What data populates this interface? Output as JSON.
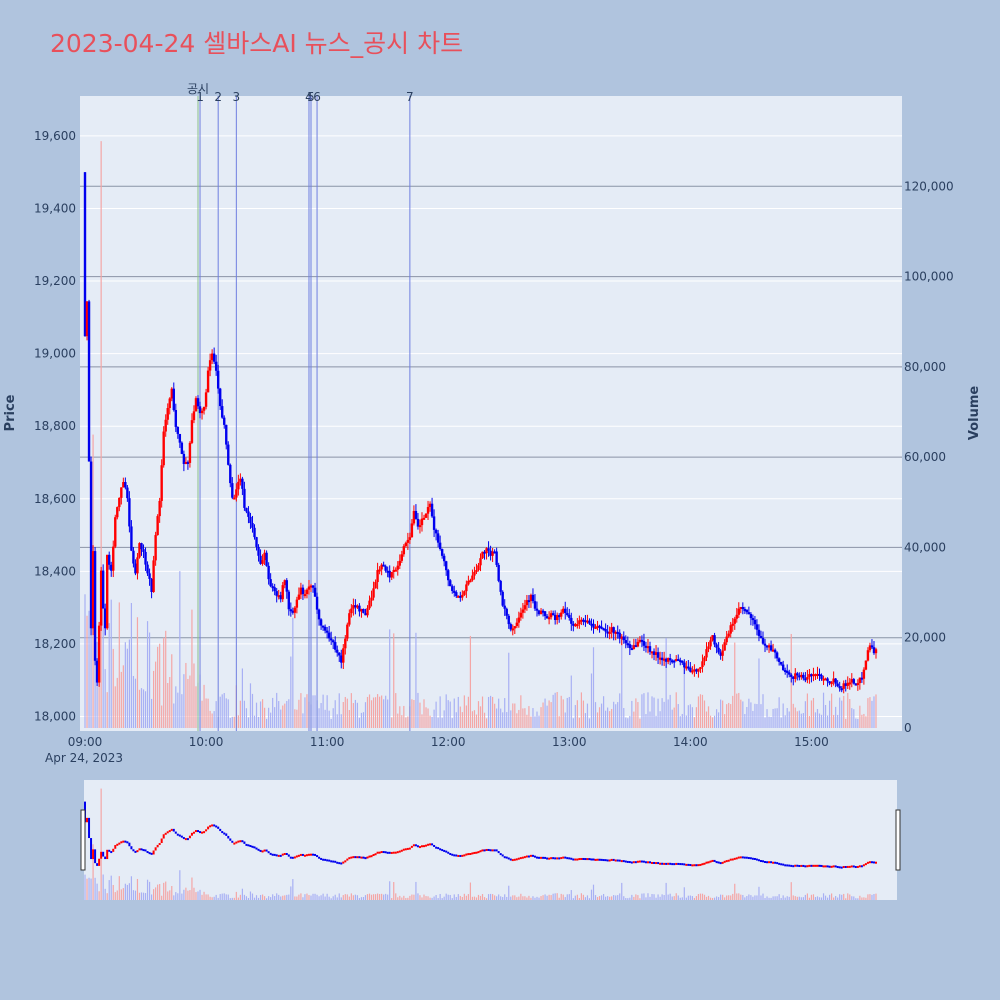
{
  "title": "2023-04-24 셀바스AI 뉴스_공시 차트",
  "colors": {
    "up": "#ff0000",
    "down": "#0000ee",
    "up_vol": "#f4a6a6",
    "down_vol": "#a8b0f4",
    "event": "#6f7fe0",
    "gongsi": "#8ac08a"
  },
  "chart_data": {
    "type": "candlestick",
    "title": "2023-04-24 셀바스AI 뉴스_공시 차트",
    "x_date_label": "Apr 24, 2023",
    "x_ticks": [
      "09:00",
      "10:00",
      "11:00",
      "12:00",
      "13:00",
      "14:00",
      "15:00"
    ],
    "y_label": "Price",
    "y2_label": "Volume",
    "y_ticks": [
      "18,000",
      "18,200",
      "18,400",
      "18,600",
      "18,800",
      "19,000",
      "19,200",
      "19,400",
      "19,600"
    ],
    "y2_ticks": [
      "0",
      "20,000",
      "40,000",
      "60,000",
      "80,000",
      "100,000",
      "120,000"
    ],
    "ylim": [
      17960,
      19710
    ],
    "y2lim": [
      0,
      140000
    ],
    "xlim_min": [
      0,
      392
    ],
    "price_path_min": [
      [
        0,
        19500
      ],
      [
        1,
        19050
      ],
      [
        2,
        19150
      ],
      [
        3,
        18700
      ],
      [
        4,
        18250
      ],
      [
        5,
        18450
      ],
      [
        6,
        18150
      ],
      [
        7,
        18100
      ],
      [
        8,
        18250
      ],
      [
        9,
        18400
      ],
      [
        10,
        18300
      ],
      [
        11,
        18250
      ],
      [
        12,
        18450
      ],
      [
        14,
        18400
      ],
      [
        16,
        18550
      ],
      [
        18,
        18600
      ],
      [
        20,
        18650
      ],
      [
        22,
        18600
      ],
      [
        24,
        18450
      ],
      [
        26,
        18400
      ],
      [
        28,
        18480
      ],
      [
        30,
        18450
      ],
      [
        32,
        18400
      ],
      [
        34,
        18350
      ],
      [
        36,
        18500
      ],
      [
        38,
        18600
      ],
      [
        40,
        18780
      ],
      [
        42,
        18850
      ],
      [
        44,
        18900
      ],
      [
        46,
        18800
      ],
      [
        48,
        18750
      ],
      [
        50,
        18700
      ],
      [
        52,
        18700
      ],
      [
        54,
        18820
      ],
      [
        56,
        18870
      ],
      [
        58,
        18830
      ],
      [
        60,
        18850
      ],
      [
        62,
        18950
      ],
      [
        64,
        19000
      ],
      [
        66,
        18950
      ],
      [
        68,
        18850
      ],
      [
        70,
        18800
      ],
      [
        72,
        18700
      ],
      [
        74,
        18600
      ],
      [
        76,
        18620
      ],
      [
        78,
        18660
      ],
      [
        80,
        18580
      ],
      [
        82,
        18550
      ],
      [
        84,
        18520
      ],
      [
        86,
        18470
      ],
      [
        88,
        18420
      ],
      [
        90,
        18450
      ],
      [
        92,
        18380
      ],
      [
        94,
        18350
      ],
      [
        96,
        18340
      ],
      [
        98,
        18330
      ],
      [
        100,
        18380
      ],
      [
        102,
        18300
      ],
      [
        104,
        18280
      ],
      [
        106,
        18320
      ],
      [
        108,
        18350
      ],
      [
        110,
        18330
      ],
      [
        112,
        18360
      ],
      [
        114,
        18350
      ],
      [
        116,
        18300
      ],
      [
        118,
        18250
      ],
      [
        120,
        18240
      ],
      [
        122,
        18220
      ],
      [
        124,
        18200
      ],
      [
        126,
        18180
      ],
      [
        128,
        18150
      ],
      [
        130,
        18220
      ],
      [
        132,
        18280
      ],
      [
        134,
        18310
      ],
      [
        136,
        18300
      ],
      [
        138,
        18290
      ],
      [
        140,
        18280
      ],
      [
        142,
        18320
      ],
      [
        144,
        18350
      ],
      [
        146,
        18400
      ],
      [
        148,
        18420
      ],
      [
        150,
        18400
      ],
      [
        152,
        18390
      ],
      [
        154,
        18400
      ],
      [
        156,
        18420
      ],
      [
        158,
        18450
      ],
      [
        160,
        18480
      ],
      [
        162,
        18500
      ],
      [
        164,
        18560
      ],
      [
        166,
        18520
      ],
      [
        168,
        18540
      ],
      [
        170,
        18560
      ],
      [
        172,
        18580
      ],
      [
        174,
        18520
      ],
      [
        176,
        18480
      ],
      [
        178,
        18450
      ],
      [
        180,
        18400
      ],
      [
        182,
        18360
      ],
      [
        184,
        18340
      ],
      [
        186,
        18330
      ],
      [
        188,
        18340
      ],
      [
        190,
        18360
      ],
      [
        192,
        18380
      ],
      [
        194,
        18400
      ],
      [
        196,
        18420
      ],
      [
        198,
        18450
      ],
      [
        200,
        18460
      ],
      [
        202,
        18440
      ],
      [
        204,
        18460
      ],
      [
        206,
        18380
      ],
      [
        208,
        18300
      ],
      [
        210,
        18280
      ],
      [
        212,
        18240
      ],
      [
        214,
        18250
      ],
      [
        216,
        18280
      ],
      [
        218,
        18300
      ],
      [
        220,
        18320
      ],
      [
        222,
        18330
      ],
      [
        224,
        18300
      ],
      [
        226,
        18280
      ],
      [
        228,
        18290
      ],
      [
        230,
        18270
      ],
      [
        232,
        18280
      ],
      [
        234,
        18270
      ],
      [
        236,
        18280
      ],
      [
        238,
        18290
      ],
      [
        240,
        18280
      ],
      [
        242,
        18260
      ],
      [
        244,
        18250
      ],
      [
        246,
        18260
      ],
      [
        248,
        18270
      ],
      [
        250,
        18260
      ],
      [
        252,
        18250
      ],
      [
        254,
        18240
      ],
      [
        256,
        18250
      ],
      [
        258,
        18240
      ],
      [
        260,
        18230
      ],
      [
        262,
        18240
      ],
      [
        264,
        18230
      ],
      [
        266,
        18220
      ],
      [
        268,
        18210
      ],
      [
        270,
        18200
      ],
      [
        272,
        18190
      ],
      [
        274,
        18200
      ],
      [
        276,
        18210
      ],
      [
        278,
        18200
      ],
      [
        280,
        18190
      ],
      [
        282,
        18180
      ],
      [
        284,
        18170
      ],
      [
        286,
        18165
      ],
      [
        288,
        18160
      ],
      [
        290,
        18155
      ],
      [
        292,
        18150
      ],
      [
        294,
        18160
      ],
      [
        296,
        18150
      ],
      [
        298,
        18140
      ],
      [
        300,
        18130
      ],
      [
        302,
        18120
      ],
      [
        304,
        18130
      ],
      [
        306,
        18140
      ],
      [
        308,
        18160
      ],
      [
        310,
        18200
      ],
      [
        312,
        18220
      ],
      [
        314,
        18190
      ],
      [
        316,
        18170
      ],
      [
        318,
        18200
      ],
      [
        320,
        18230
      ],
      [
        322,
        18260
      ],
      [
        324,
        18280
      ],
      [
        326,
        18300
      ],
      [
        328,
        18290
      ],
      [
        330,
        18280
      ],
      [
        332,
        18260
      ],
      [
        334,
        18240
      ],
      [
        336,
        18210
      ],
      [
        338,
        18200
      ],
      [
        340,
        18190
      ],
      [
        342,
        18180
      ],
      [
        344,
        18160
      ],
      [
        346,
        18140
      ],
      [
        348,
        18120
      ],
      [
        350,
        18110
      ],
      [
        352,
        18110
      ],
      [
        354,
        18120
      ],
      [
        356,
        18110
      ],
      [
        358,
        18105
      ],
      [
        360,
        18110
      ],
      [
        362,
        18120
      ],
      [
        364,
        18115
      ],
      [
        366,
        18110
      ],
      [
        368,
        18105
      ],
      [
        370,
        18100
      ],
      [
        372,
        18100
      ],
      [
        374,
        18090
      ],
      [
        376,
        18080
      ],
      [
        378,
        18090
      ],
      [
        380,
        18100
      ],
      [
        382,
        18095
      ],
      [
        384,
        18090
      ],
      [
        386,
        18110
      ],
      [
        388,
        18160
      ],
      [
        390,
        18200
      ],
      [
        392,
        18180
      ]
    ],
    "event_markers": [
      {
        "label": "공시",
        "min": 56
      },
      {
        "label": "1",
        "min": 57
      },
      {
        "label": "2",
        "min": 66
      },
      {
        "label": "3",
        "min": 75
      },
      {
        "label": "4",
        "min": 111
      },
      {
        "label": "5",
        "min": 112
      },
      {
        "label": "6",
        "min": 115
      },
      {
        "label": "7",
        "min": 161
      }
    ]
  }
}
